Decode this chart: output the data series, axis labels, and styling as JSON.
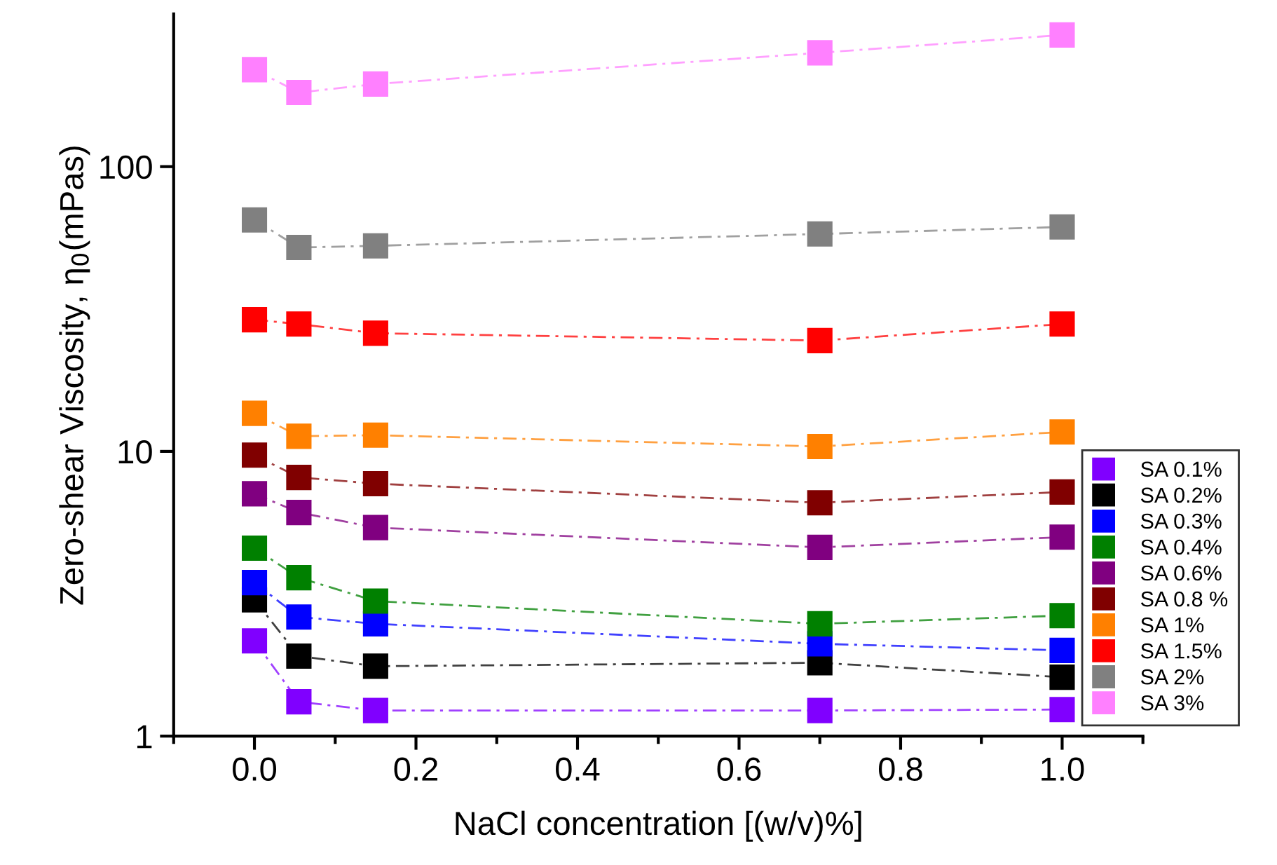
{
  "chart_data": {
    "type": "line",
    "xlabel": "NaCl concentration [(w/v)%]",
    "ylabel": "Zero-shear Viscosity, η$_{0}$(mPas)",
    "x": [
      0,
      0.055,
      0.15,
      0.7,
      1.0
    ],
    "series": [
      {
        "name": "SA 0.1%",
        "color": "#8000ff",
        "values": [
          2.16,
          1.32,
          1.23,
          1.23,
          1.24
        ]
      },
      {
        "name": "SA 0.2%",
        "color": "#000000",
        "values": [
          3.01,
          1.91,
          1.76,
          1.81,
          1.61
        ]
      },
      {
        "name": "SA 0.3%",
        "color": "#0000ff",
        "values": [
          3.46,
          2.62,
          2.48,
          2.11,
          2.0
        ]
      },
      {
        "name": "SA 0.4%",
        "color": "#008000",
        "values": [
          4.57,
          3.6,
          2.98,
          2.48,
          2.65
        ]
      },
      {
        "name": "SA 0.6%",
        "color": "#800080",
        "values": [
          7.1,
          6.1,
          5.4,
          4.6,
          5.0
        ]
      },
      {
        "name": "SA 0.8 %",
        "color": "#800000",
        "values": [
          9.7,
          8.1,
          7.7,
          6.6,
          7.2
        ]
      },
      {
        "name": "SA 1%",
        "color": "#ff8000",
        "values": [
          13.6,
          11.3,
          11.4,
          10.4,
          11.7
        ]
      },
      {
        "name": "SA 1.5%",
        "color": "#ff0000",
        "values": [
          29,
          28,
          26,
          24.5,
          28
        ]
      },
      {
        "name": "SA 2%",
        "color": "#808080",
        "values": [
          65,
          52,
          52.7,
          58,
          61.4
        ]
      },
      {
        "name": "SA 3%",
        "color": "#ff80ff",
        "values": [
          219,
          182,
          195,
          251,
          290
        ]
      }
    ],
    "log": "y",
    "xlim": [
      -0.1,
      1.1
    ],
    "xticks": [
      {
        "value": 0,
        "label": "0.0"
      },
      0.2,
      0.4,
      0.6,
      0.8,
      {
        "value": 1.0,
        "label": "1.0"
      }
    ],
    "ylim": [
      1,
      344
    ],
    "yticks": [
      1,
      10,
      100
    ],
    "marker": "square",
    "line_style": "dashed",
    "legend": "bottom right",
    "grid": false
  }
}
